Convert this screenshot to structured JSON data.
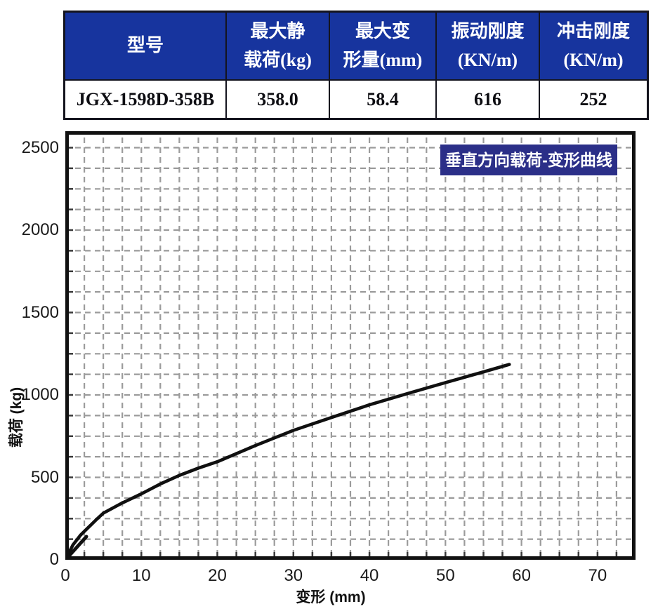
{
  "table": {
    "header": [
      [
        "型号"
      ],
      [
        "最大静",
        "载荷(kg)"
      ],
      [
        "最大变",
        "形量(mm)"
      ],
      [
        "振动刚度",
        "(KN/m)"
      ],
      [
        "冲击刚度",
        "(KN/m)"
      ]
    ],
    "row": [
      "JGX-1598D-358B",
      "358.0",
      "58.4",
      "616",
      "252"
    ]
  },
  "chart_data": {
    "type": "line",
    "title": "垂直方向载荷-变形曲线",
    "xlabel": "变形 (mm)",
    "ylabel": "载荷 (kg)",
    "xlim": [
      0,
      75
    ],
    "ylim": [
      0,
      2600
    ],
    "x_ticks": [
      0,
      10,
      20,
      30,
      40,
      50,
      60,
      70
    ],
    "y_ticks": [
      0,
      500,
      1000,
      1500,
      2000,
      2500
    ],
    "minor_x_step": 2.5,
    "minor_y_step": 125,
    "grid": "dashed",
    "legend_position": "none",
    "series": [
      {
        "name": "垂直方向载荷-变形曲线",
        "x": [
          0,
          0.5,
          1,
          2,
          3,
          4,
          5,
          7.5,
          10,
          12.5,
          15,
          17.5,
          20,
          25,
          30,
          35,
          40,
          45,
          50,
          55,
          58.4
        ],
        "y": [
          0,
          45,
          90,
          150,
          195,
          240,
          283,
          345,
          400,
          460,
          512,
          556,
          595,
          693,
          785,
          863,
          940,
          1008,
          1075,
          1140,
          1185
        ]
      }
    ]
  },
  "colors": {
    "table_header_bg": "#17349e",
    "title_box_bg": "#2b2f88",
    "grid": "#9b9b9b",
    "curve": "#101010",
    "axis": "#111111",
    "tick": "#3a3a3a"
  }
}
